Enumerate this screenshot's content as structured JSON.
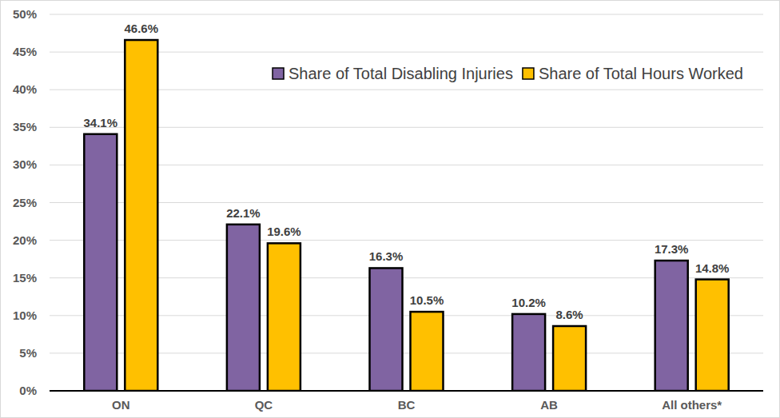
{
  "chart_data": {
    "type": "bar",
    "categories": [
      "ON",
      "QC",
      "BC",
      "AB",
      "All others*"
    ],
    "series": [
      {
        "name": "Share of Total Disabling Injuries",
        "color": "#8064a2",
        "values": [
          34.1,
          22.1,
          16.3,
          10.2,
          17.3
        ],
        "value_labels": [
          "34.1%",
          "22.1%",
          "16.3%",
          "10.2%",
          "17.3%"
        ]
      },
      {
        "name": "Share of Total Hours Worked",
        "color": "#ffc000",
        "values": [
          46.6,
          19.6,
          10.5,
          8.6,
          14.8
        ],
        "value_labels": [
          "46.6%",
          "19.6%",
          "10.5%",
          "8.6%",
          "14.8%"
        ]
      }
    ],
    "ylim": [
      0,
      50
    ],
    "yticks": [
      {
        "value": 0,
        "label": "0%"
      },
      {
        "value": 5,
        "label": "5%"
      },
      {
        "value": 10,
        "label": "10%"
      },
      {
        "value": 15,
        "label": "15%"
      },
      {
        "value": 20,
        "label": "20%"
      },
      {
        "value": 25,
        "label": "25%"
      },
      {
        "value": 30,
        "label": "30%"
      },
      {
        "value": 35,
        "label": "35%"
      },
      {
        "value": 40,
        "label": "40%"
      },
      {
        "value": 45,
        "label": "45%"
      },
      {
        "value": 50,
        "label": "50%"
      }
    ],
    "grid": true,
    "legend": "top-right",
    "data_labels": true
  }
}
